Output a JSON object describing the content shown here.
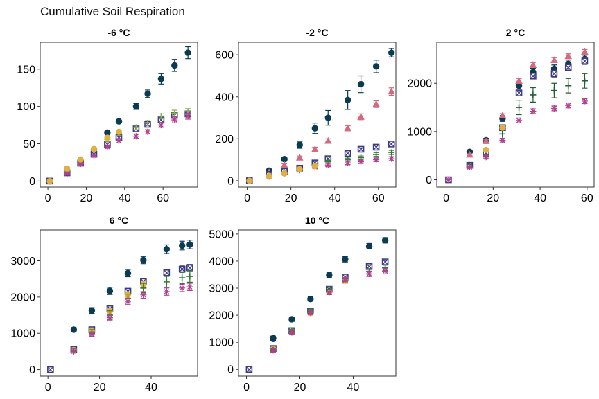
{
  "figure_title": "Cumulative Soil Respiration",
  "colors": {
    "dark_navy": "#0b3a53",
    "pink": "#d46a7e",
    "indigo": "#3e3a82",
    "green": "#2e7d32",
    "light_green": "#8ab34a",
    "dark_green": "#1f5e3a",
    "magenta": "#b04090",
    "gold": "#e0b040"
  },
  "chart_data": [
    {
      "type": "scatter",
      "title": "-6 °C",
      "xlim": [
        -4,
        78
      ],
      "ylim": [
        -8,
        186
      ],
      "xticks": [
        0,
        20,
        40,
        60
      ],
      "yticks": [
        0,
        50,
        100,
        150
      ],
      "series": [
        {
          "marker": "diamond",
          "color": "#0b3a53",
          "x": [
            1,
            10,
            17,
            24,
            31,
            37,
            46,
            52,
            59,
            66,
            73
          ],
          "y": [
            0,
            12,
            27,
            42,
            65,
            80,
            100,
            117,
            137,
            155,
            172
          ],
          "err": [
            0,
            1.5,
            2,
            3,
            3,
            2,
            4,
            5,
            7,
            8,
            8
          ]
        },
        {
          "marker": "square-x",
          "color": "#3e3a82",
          "x": [
            1,
            10,
            17,
            24,
            31,
            37,
            46,
            52,
            59,
            66,
            73
          ],
          "y": [
            0,
            11,
            24,
            36,
            49,
            58,
            70,
            76,
            82,
            88,
            90
          ],
          "err": [
            0,
            1,
            1.5,
            2,
            2,
            3,
            3,
            3,
            3,
            4,
            4
          ]
        },
        {
          "marker": "plus",
          "color": "#8ab34a",
          "x": [
            1,
            10,
            17,
            24,
            31,
            37,
            46,
            52,
            59,
            66,
            73
          ],
          "y": [
            0,
            14,
            27,
            41,
            56,
            64,
            72,
            78,
            87,
            91,
            93
          ],
          "err": [
            0,
            1,
            2,
            2,
            3,
            3,
            3,
            3,
            3,
            4,
            4
          ]
        },
        {
          "marker": "asterisk",
          "color": "#b04090",
          "x": [
            1,
            10,
            17,
            24,
            31,
            37,
            46,
            52,
            59,
            66,
            73
          ],
          "y": [
            0,
            10,
            23,
            34,
            46,
            54,
            60,
            66,
            75,
            82,
            87
          ],
          "err": [
            0,
            1,
            1.5,
            2,
            2,
            3,
            3,
            3,
            3,
            4,
            4
          ]
        },
        {
          "marker": "circle",
          "color": "#e0b040",
          "x": [
            1,
            10,
            17,
            24,
            31,
            37
          ],
          "y": [
            0,
            17,
            29,
            43,
            58,
            66
          ],
          "err": [
            0,
            1,
            1,
            2,
            2,
            2
          ]
        }
      ]
    },
    {
      "type": "scatter",
      "title": "-2 °C",
      "xlim": [
        -4,
        68
      ],
      "ylim": [
        -30,
        660
      ],
      "xticks": [
        0,
        20,
        40,
        60
      ],
      "yticks": [
        0,
        200,
        400,
        600
      ],
      "series": [
        {
          "marker": "diamond",
          "color": "#0b3a53",
          "x": [
            1,
            10,
            17,
            24,
            31,
            37,
            46,
            52,
            59,
            66
          ],
          "y": [
            0,
            48,
            103,
            170,
            250,
            300,
            385,
            460,
            545,
            610
          ],
          "err": [
            0,
            5,
            10,
            15,
            25,
            35,
            45,
            40,
            30,
            20
          ]
        },
        {
          "marker": "triangle",
          "color": "#d46a7e",
          "x": [
            10,
            17,
            24,
            31,
            37,
            46,
            52,
            59,
            66
          ],
          "y": [
            40,
            75,
            110,
            150,
            190,
            250,
            305,
            365,
            425
          ],
          "err": [
            4,
            6,
            8,
            10,
            10,
            12,
            14,
            16,
            18
          ]
        },
        {
          "marker": "square-x",
          "color": "#3e3a82",
          "x": [
            1,
            10,
            17,
            24,
            31,
            37,
            46,
            52,
            59,
            66
          ],
          "y": [
            0,
            30,
            45,
            60,
            85,
            105,
            130,
            150,
            160,
            175
          ],
          "err": [
            0,
            3,
            4,
            5,
            6,
            7,
            8,
            8,
            9,
            10
          ]
        },
        {
          "marker": "plus",
          "color": "#2e7d32",
          "x": [
            1,
            10,
            17,
            24,
            31,
            37,
            46,
            52,
            59,
            66
          ],
          "y": [
            0,
            25,
            40,
            55,
            75,
            90,
            100,
            110,
            125,
            135
          ],
          "err": [
            0,
            3,
            4,
            5,
            6,
            7,
            8,
            8,
            9,
            10
          ]
        },
        {
          "marker": "asterisk",
          "color": "#b04090",
          "x": [
            1,
            10,
            17,
            24,
            31,
            37,
            46,
            52,
            59,
            66
          ],
          "y": [
            0,
            20,
            35,
            50,
            65,
            75,
            85,
            90,
            100,
            105
          ],
          "err": [
            0,
            3,
            4,
            5,
            6,
            7,
            8,
            8,
            9,
            10
          ]
        },
        {
          "marker": "circle",
          "color": "#e0b040",
          "x": [
            1,
            10,
            17,
            24,
            31
          ],
          "y": [
            0,
            22,
            35,
            55,
            70
          ],
          "err": [
            0,
            3,
            4,
            5,
            6
          ]
        }
      ]
    },
    {
      "type": "scatter",
      "title": "2 °C",
      "xlim": [
        -4,
        63
      ],
      "ylim": [
        -150,
        2850
      ],
      "xticks": [
        0,
        20,
        40,
        60
      ],
      "yticks": [
        0,
        1000,
        2000
      ],
      "series": [
        {
          "marker": "diamond",
          "color": "#0b3a53",
          "x": [
            1,
            10,
            17,
            24,
            31,
            37,
            46,
            52,
            59
          ],
          "y": [
            0,
            580,
            820,
            1270,
            1950,
            2230,
            2300,
            2400,
            2500
          ],
          "err": [
            0,
            30,
            40,
            60,
            70,
            80,
            80,
            80,
            80
          ]
        },
        {
          "marker": "triangle",
          "color": "#d46a7e",
          "x": [
            10,
            17,
            24,
            31,
            37,
            46,
            52,
            59
          ],
          "y": [
            520,
            800,
            1330,
            2050,
            2380,
            2480,
            2560,
            2650
          ],
          "err": [
            20,
            30,
            40,
            50,
            50,
            50,
            50,
            50
          ]
        },
        {
          "marker": "square-x",
          "color": "#3e3a82",
          "x": [
            1,
            10,
            17,
            24,
            31,
            37,
            46,
            52,
            59
          ],
          "y": [
            0,
            300,
            560,
            1080,
            1800,
            2150,
            2200,
            2330,
            2460
          ],
          "err": [
            0,
            30,
            40,
            50,
            60,
            60,
            70,
            70,
            70
          ]
        },
        {
          "marker": "plus",
          "color": "#1f5e3a",
          "x": [
            10,
            17,
            24,
            31,
            37,
            46,
            52,
            59
          ],
          "y": [
            280,
            530,
            950,
            1500,
            1760,
            1850,
            1950,
            2050
          ],
          "err": [
            40,
            50,
            100,
            150,
            150,
            150,
            150,
            150
          ]
        },
        {
          "marker": "asterisk",
          "color": "#b04090",
          "x": [
            1,
            10,
            17,
            24,
            31,
            37,
            46,
            52,
            59
          ],
          "y": [
            0,
            260,
            470,
            820,
            1230,
            1420,
            1480,
            1540,
            1630
          ],
          "err": [
            0,
            20,
            30,
            40,
            50,
            50,
            50,
            50,
            50
          ]
        },
        {
          "marker": "circle",
          "color": "#e0b040",
          "x": [
            17,
            24
          ],
          "y": [
            620,
            1080
          ],
          "err": [
            30,
            40
          ]
        }
      ]
    },
    {
      "type": "scatter",
      "title": "6 °C",
      "xlim": [
        -3,
        58
      ],
      "ylim": [
        -180,
        3850
      ],
      "xticks": [
        0,
        20,
        40
      ],
      "yticks": [
        0,
        1000,
        2000,
        3000
      ],
      "series": [
        {
          "marker": "diamond",
          "color": "#0b3a53",
          "x": [
            1,
            10,
            17,
            24,
            31,
            37,
            46,
            52,
            55
          ],
          "y": [
            0,
            1100,
            1630,
            2170,
            2660,
            3020,
            3320,
            3420,
            3450
          ],
          "err": [
            0,
            60,
            80,
            100,
            100,
            100,
            120,
            120,
            120
          ]
        },
        {
          "marker": "square-x",
          "color": "#3e3a82",
          "x": [
            1,
            10,
            17,
            24,
            31,
            37,
            46,
            52,
            55
          ],
          "y": [
            0,
            560,
            1100,
            1680,
            2160,
            2430,
            2670,
            2770,
            2810
          ],
          "err": [
            0,
            40,
            60,
            80,
            80,
            90,
            90,
            90,
            90
          ]
        },
        {
          "marker": "circle",
          "color": "#e0b040",
          "x": [
            10,
            17,
            24,
            31,
            37
          ],
          "y": [
            540,
            1060,
            1610,
            2060,
            2330
          ],
          "err": [
            40,
            60,
            80,
            80,
            90
          ]
        },
        {
          "marker": "plus",
          "color": "#2e7d32",
          "x": [
            10,
            17,
            24,
            31,
            37,
            46,
            52,
            55
          ],
          "y": [
            520,
            1000,
            1500,
            1960,
            2250,
            2420,
            2530,
            2570
          ],
          "err": [
            60,
            100,
            120,
            120,
            130,
            150,
            160,
            160
          ]
        },
        {
          "marker": "asterisk",
          "color": "#b04090",
          "x": [
            10,
            17,
            24,
            31,
            37,
            46,
            52,
            55
          ],
          "y": [
            500,
            980,
            1430,
            1880,
            2060,
            2150,
            2250,
            2280
          ],
          "err": [
            40,
            60,
            80,
            80,
            90,
            100,
            100,
            100
          ]
        }
      ]
    },
    {
      "type": "scatter",
      "title": "10 °C",
      "xlim": [
        -3,
        56
      ],
      "ylim": [
        -250,
        5150
      ],
      "xticks": [
        0,
        20,
        40
      ],
      "yticks": [
        0,
        1000,
        2000,
        3000,
        4000,
        5000
      ],
      "series": [
        {
          "marker": "diamond",
          "color": "#0b3a53",
          "x": [
            1,
            10,
            17,
            24,
            31,
            37,
            46,
            52
          ],
          "y": [
            0,
            1150,
            1850,
            2600,
            3480,
            4070,
            4550,
            4770
          ],
          "err": [
            0,
            80,
            80,
            80,
            90,
            100,
            100,
            100
          ]
        },
        {
          "marker": "square-x",
          "color": "#3e3a82",
          "x": [
            1,
            10,
            17,
            24,
            31,
            37,
            46,
            52
          ],
          "y": [
            0,
            770,
            1430,
            2150,
            2960,
            3410,
            3800,
            3970
          ],
          "err": [
            0,
            60,
            70,
            80,
            90,
            100,
            100,
            100
          ]
        },
        {
          "marker": "circle",
          "color": "#e0b040",
          "x": [
            10,
            17,
            24,
            31,
            37
          ],
          "y": [
            750,
            1400,
            2080,
            2850,
            3280
          ],
          "err": [
            60,
            70,
            80,
            90,
            100
          ]
        },
        {
          "marker": "plus",
          "color": "#2e7d32",
          "x": [
            10,
            17,
            24,
            31,
            37,
            46,
            52
          ],
          "y": [
            720,
            1400,
            2150,
            2960,
            3350,
            3620,
            3750
          ],
          "err": [
            60,
            70,
            80,
            90,
            100,
            100,
            100
          ]
        },
        {
          "marker": "asterisk",
          "color": "#b04090",
          "x": [
            10,
            17,
            24,
            31,
            37,
            46,
            52
          ],
          "y": [
            700,
            1360,
            2100,
            2850,
            3300,
            3530,
            3630
          ],
          "err": [
            60,
            70,
            80,
            90,
            100,
            100,
            100
          ]
        }
      ]
    }
  ]
}
